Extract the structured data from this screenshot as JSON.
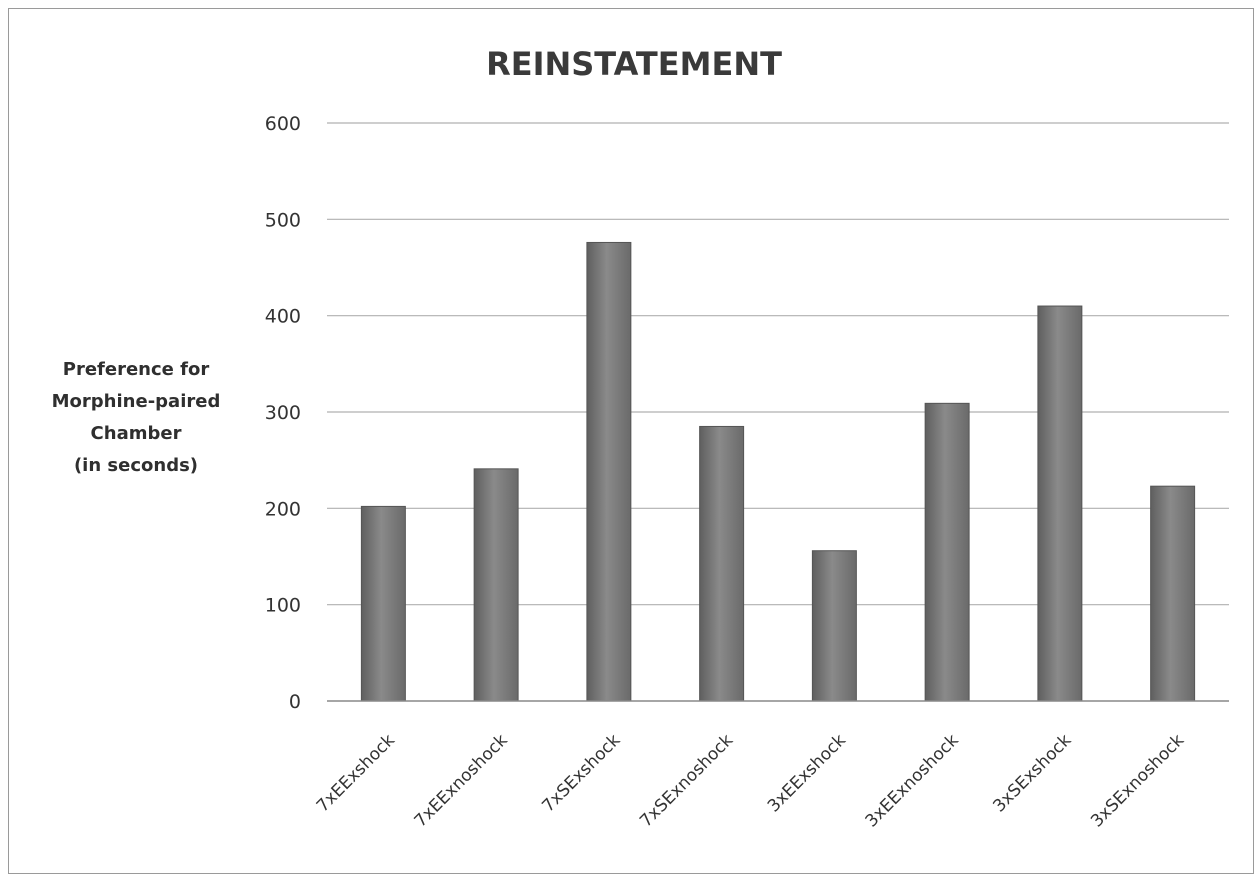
{
  "chart_data": {
    "type": "bar",
    "title": "REINSTATEMENT",
    "ylabel_lines": [
      "Preference for",
      "Morphine-paired",
      "Chamber",
      "(in seconds)"
    ],
    "xlabel": "",
    "categories": [
      "7xEExshock",
      "7xEExnoshock",
      "7xSExshock",
      "7xSExnoshock",
      "3xEExshock",
      "3xEExnoshock",
      "3xSExshock",
      "3xSExnoshock"
    ],
    "values": [
      202,
      241,
      476,
      285,
      156,
      309,
      410,
      223
    ],
    "ylim": [
      0,
      600
    ],
    "yticks": [
      0,
      100,
      200,
      300,
      400,
      500,
      600
    ],
    "grid": true,
    "legend": "none",
    "colors": {
      "bar": "#7a7a7a",
      "bar_edge": "#555555",
      "grid": "#b0b0b0",
      "axis": "#888888"
    }
  }
}
